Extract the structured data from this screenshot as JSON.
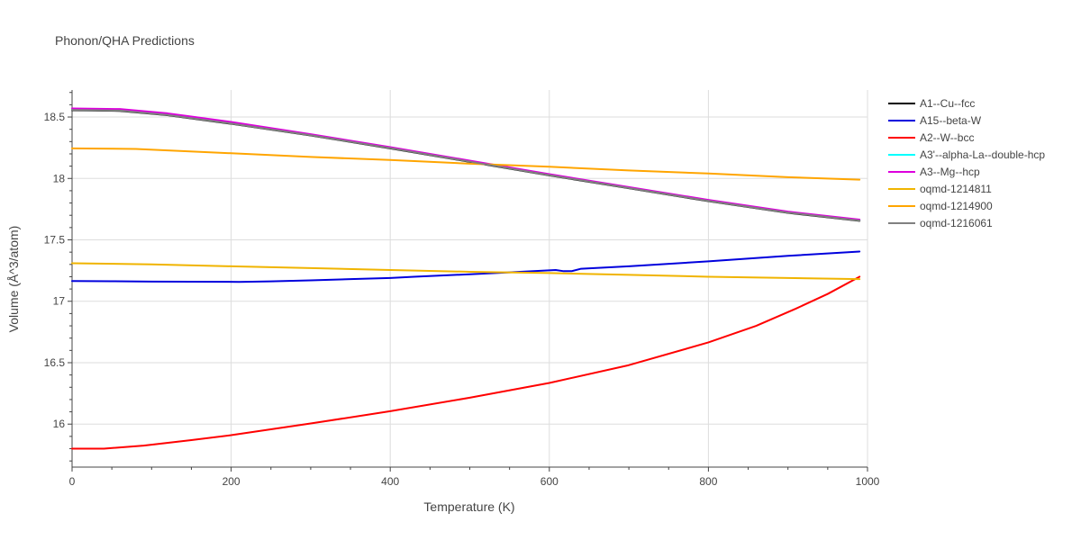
{
  "chart_data": {
    "type": "line",
    "title": "Phonon/QHA Predictions",
    "xlabel": "Temperature (K)",
    "ylabel": "Volume (Å^3/atom)",
    "xlim": [
      0,
      1000
    ],
    "ylim": [
      15.65,
      18.72
    ],
    "x_ticks": [
      0,
      200,
      400,
      600,
      800,
      1000
    ],
    "y_ticks": [
      16,
      16.5,
      17,
      17.5,
      18,
      18.5
    ],
    "x_tick_labels": [
      "0",
      "200",
      "400",
      "600",
      "800",
      "1000"
    ],
    "y_tick_labels": [
      "16",
      "16.5",
      "17",
      "17.5",
      "18",
      "18.5"
    ],
    "grid": true,
    "legend_position": "right",
    "series": [
      {
        "name": "A1--Cu--fcc",
        "color": "#000000",
        "x": [
          0,
          60,
          120,
          200,
          300,
          400,
          500,
          600,
          700,
          800,
          900,
          990
        ],
        "y": [
          18.555,
          18.55,
          18.515,
          18.445,
          18.35,
          18.245,
          18.135,
          18.025,
          17.92,
          17.815,
          17.72,
          17.655
        ]
      },
      {
        "name": "A15--beta-W",
        "color": "#0000dd",
        "x": [
          0,
          50,
          100,
          150,
          210,
          250,
          300,
          350,
          400,
          430,
          500,
          550,
          608,
          618,
          628,
          640,
          700,
          800,
          900,
          990
        ],
        "y": [
          17.165,
          17.163,
          17.16,
          17.159,
          17.158,
          17.162,
          17.17,
          17.18,
          17.19,
          17.2,
          17.22,
          17.235,
          17.255,
          17.245,
          17.245,
          17.265,
          17.285,
          17.325,
          17.37,
          17.405
        ]
      },
      {
        "name": "A2--W--bcc",
        "color": "#ff0000",
        "x": [
          0,
          40,
          90,
          150,
          200,
          300,
          400,
          500,
          600,
          700,
          800,
          860,
          910,
          950,
          990
        ],
        "y": [
          15.8,
          15.8,
          15.825,
          15.87,
          15.91,
          16.005,
          16.105,
          16.215,
          16.335,
          16.48,
          16.665,
          16.8,
          16.94,
          17.06,
          17.2
        ]
      },
      {
        "name": "A3'--alpha-La--double-hcp",
        "color": "#00ffff",
        "x": [
          0,
          60,
          120,
          200,
          300,
          400,
          500,
          600,
          700,
          800,
          900,
          990
        ],
        "y": [
          18.56,
          18.555,
          18.52,
          18.45,
          18.355,
          18.25,
          18.14,
          18.03,
          17.925,
          17.82,
          17.725,
          17.66
        ]
      },
      {
        "name": "A3--Mg--hcp",
        "color": "#dd00dd",
        "x": [
          0,
          60,
          120,
          200,
          300,
          400,
          500,
          600,
          700,
          800,
          900,
          990
        ],
        "y": [
          18.57,
          18.565,
          18.53,
          18.46,
          18.36,
          18.255,
          18.145,
          18.035,
          17.93,
          17.825,
          17.73,
          17.665
        ]
      },
      {
        "name": "oqmd-1214811",
        "color": "#f0b400",
        "x": [
          0,
          100,
          200,
          300,
          400,
          500,
          600,
          700,
          800,
          900,
          990
        ],
        "y": [
          17.31,
          17.3,
          17.285,
          17.27,
          17.255,
          17.24,
          17.23,
          17.215,
          17.2,
          17.19,
          17.18
        ]
      },
      {
        "name": "oqmd-1214900",
        "color": "#ffa500",
        "x": [
          0,
          80,
          200,
          300,
          400,
          500,
          600,
          700,
          800,
          900,
          990
        ],
        "y": [
          18.245,
          18.24,
          18.205,
          18.175,
          18.15,
          18.12,
          18.095,
          18.065,
          18.04,
          18.01,
          17.99
        ]
      },
      {
        "name": "oqmd-1216061",
        "color": "#808080",
        "x": [
          0,
          60,
          120,
          200,
          300,
          400,
          500,
          600,
          700,
          800,
          900,
          990
        ],
        "y": [
          18.558,
          18.552,
          18.517,
          18.447,
          18.352,
          18.247,
          18.137,
          18.027,
          17.922,
          17.817,
          17.722,
          17.657
        ]
      }
    ]
  }
}
